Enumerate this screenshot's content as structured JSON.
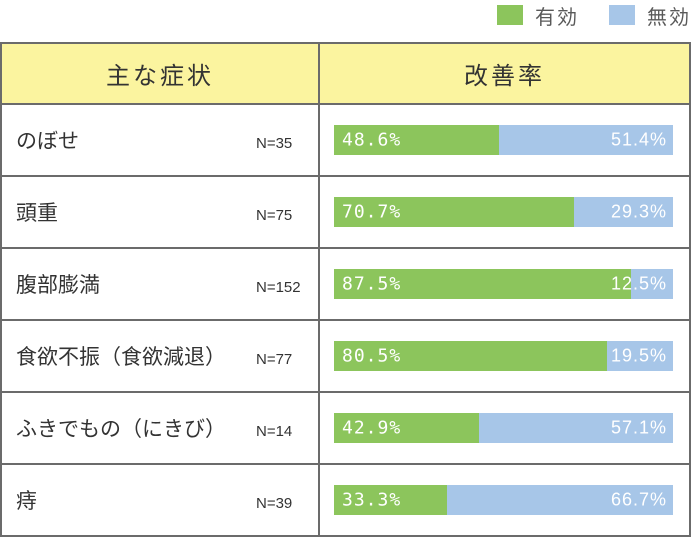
{
  "legend": [
    {
      "label": "有効",
      "color": "#8cc55c"
    },
    {
      "label": "無効",
      "color": "#a7c6e8"
    }
  ],
  "table": {
    "header_symptom": "主な症状",
    "header_rate": "改善率"
  },
  "chart_data": {
    "type": "bar",
    "orientation": "horizontal-stacked-100",
    "categories": [
      "のぼせ",
      "頭重",
      "腹部膨満",
      "食欲不振（食欲減退）",
      "ふきでもの（にきび）",
      "痔"
    ],
    "sample_sizes": [
      "N=35",
      "N=75",
      "N=152",
      "N=77",
      "N=14",
      "N=39"
    ],
    "series": [
      {
        "name": "有効",
        "color": "#8cc55c",
        "values": [
          48.6,
          70.7,
          87.5,
          80.5,
          42.9,
          33.3
        ],
        "labels": [
          "48.6%",
          "70.7%",
          "87.5%",
          "80.5%",
          "42.9%",
          "33.3%"
        ]
      },
      {
        "name": "無効",
        "color": "#a7c6e8",
        "values": [
          51.4,
          29.3,
          12.5,
          19.5,
          57.1,
          66.7
        ],
        "labels": [
          "51.4%",
          "29.3%",
          "12.5%",
          "19.5%",
          "57.1%",
          "66.7%"
        ]
      }
    ],
    "xlim": [
      0,
      100
    ],
    "legend_position": "top-right",
    "grid": false
  }
}
